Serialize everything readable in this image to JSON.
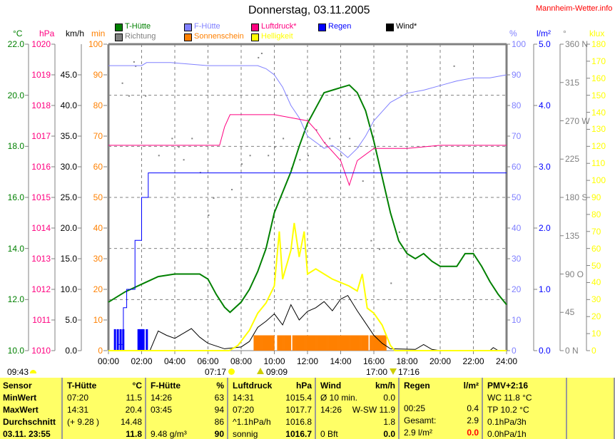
{
  "header": {
    "title": "Donnerstag, 03.11.2005",
    "site": "Mannheim-Wetter.info"
  },
  "legend": [
    {
      "label": "T-Hütte",
      "color": "#008000"
    },
    {
      "label": "F-Hütte",
      "color": "#8080ff"
    },
    {
      "label": "Luftdruck*",
      "color": "#ff0080"
    },
    {
      "label": "Regen",
      "color": "#0000ff"
    },
    {
      "label": "Wind*",
      "color": "#000000"
    },
    {
      "label": "Richtung",
      "color": "#808080"
    },
    {
      "label": "Sonnenschein",
      "color": "#ff8000"
    },
    {
      "label": "Helligkeit",
      "color": "#ffff00"
    }
  ],
  "sun": {
    "cloud_time": "09:43",
    "sunrise": "07:17",
    "first_sun": "09:09",
    "last_sun": "17:00",
    "sunset": "17:16"
  },
  "chart_data": {
    "type": "line",
    "title": "Donnerstag, 03.11.2005",
    "x_ticks": [
      "00:00",
      "02:00",
      "04:00",
      "06:00",
      "08:00",
      "10:00",
      "12:00",
      "14:00",
      "16:00",
      "18:00",
      "20:00",
      "22:00",
      "24:00"
    ],
    "xlim": [
      0,
      24
    ],
    "axes": {
      "temp": {
        "unit": "°C",
        "min": 10,
        "max": 22,
        "step": 2,
        "fmt": 1,
        "color": "#008000"
      },
      "pressure": {
        "unit": "hPa",
        "min": 1010,
        "max": 1020,
        "step": 1,
        "fmt": 0,
        "color": "#ff0080"
      },
      "wind": {
        "unit": "km/h",
        "min": 0,
        "max": 50,
        "step": 5,
        "fmt": 1,
        "color": "#000000",
        "hide_max": true
      },
      "sunshine": {
        "unit": "min",
        "min": 0,
        "max": 100,
        "step": 10,
        "fmt": 0,
        "color": "#ff8000"
      },
      "humidity": {
        "unit": "%",
        "min": 0,
        "max": 100,
        "step": 10,
        "fmt": 0,
        "color": "#8080ff"
      },
      "rain": {
        "unit": "l/m²",
        "min": 0,
        "max": 5,
        "step": 1,
        "fmt": 1,
        "color": "#0000ff"
      },
      "direction": {
        "unit": "°",
        "min": 0,
        "max": 360,
        "step": 45,
        "labels": [
          "0 N",
          "45",
          "90 O",
          "135",
          "180 S",
          "225",
          "270 W",
          "315",
          "360 N"
        ],
        "color": "#808080"
      },
      "brightness": {
        "unit": "klux",
        "min": 0,
        "max": 180,
        "step": 10,
        "fmt": 0,
        "color": "#ffff00"
      }
    },
    "series": [
      {
        "name": "T-Hütte",
        "axis": "temp",
        "color": "#008000",
        "points": [
          [
            0,
            11.9
          ],
          [
            1,
            12.3
          ],
          [
            2,
            12.6
          ],
          [
            3,
            12.9
          ],
          [
            4,
            13.0
          ],
          [
            5.5,
            13.0
          ],
          [
            6,
            12.8
          ],
          [
            6.5,
            12.2
          ],
          [
            7,
            11.7
          ],
          [
            7.33,
            11.5
          ],
          [
            8,
            11.9
          ],
          [
            8.5,
            12.4
          ],
          [
            9,
            13.1
          ],
          [
            9.5,
            14.0
          ],
          [
            10,
            15.4
          ],
          [
            10.5,
            16.2
          ],
          [
            11,
            17.0
          ],
          [
            11.5,
            18.0
          ],
          [
            12,
            18.9
          ],
          [
            12.5,
            19.5
          ],
          [
            13,
            20.1
          ],
          [
            13.5,
            20.2
          ],
          [
            14,
            20.3
          ],
          [
            14.52,
            20.4
          ],
          [
            15,
            20.1
          ],
          [
            15.5,
            19.4
          ],
          [
            16,
            18.2
          ],
          [
            16.5,
            16.8
          ],
          [
            17,
            15.4
          ],
          [
            17.5,
            14.3
          ],
          [
            18,
            13.8
          ],
          [
            18.5,
            13.6
          ],
          [
            19,
            13.8
          ],
          [
            19.5,
            13.5
          ],
          [
            20,
            13.3
          ],
          [
            21,
            13.3
          ],
          [
            21.5,
            13.8
          ],
          [
            22,
            13.8
          ],
          [
            22.5,
            13.3
          ],
          [
            23,
            12.7
          ],
          [
            23.5,
            12.2
          ],
          [
            24,
            11.8
          ]
        ]
      },
      {
        "name": "F-Hütte",
        "axis": "humidity",
        "color": "#8080ff",
        "points": [
          [
            0,
            93
          ],
          [
            2,
            93
          ],
          [
            2.3,
            94
          ],
          [
            3.75,
            94
          ],
          [
            6,
            93
          ],
          [
            8,
            93
          ],
          [
            9,
            93
          ],
          [
            9.5,
            92
          ],
          [
            10,
            90
          ],
          [
            10.5,
            86
          ],
          [
            11,
            80
          ],
          [
            11.5,
            76
          ],
          [
            12,
            70
          ],
          [
            12.5,
            68
          ],
          [
            13,
            66
          ],
          [
            13.5,
            67
          ],
          [
            14,
            65
          ],
          [
            14.43,
            63
          ],
          [
            15,
            66
          ],
          [
            15.5,
            70
          ],
          [
            16,
            75
          ],
          [
            16.5,
            78
          ],
          [
            17,
            81
          ],
          [
            18,
            84
          ],
          [
            19,
            85
          ],
          [
            20,
            86.5
          ],
          [
            21,
            88
          ],
          [
            22,
            89
          ],
          [
            23,
            89
          ],
          [
            24,
            90
          ]
        ]
      },
      {
        "name": "Luftdruck*",
        "axis": "pressure",
        "color": "#ff0080",
        "points": [
          [
            0,
            1016.7
          ],
          [
            6.7,
            1016.7
          ],
          [
            7,
            1017.3
          ],
          [
            7.33,
            1017.7
          ],
          [
            10,
            1017.7
          ],
          [
            12,
            1017.5
          ],
          [
            12.5,
            1017.2
          ],
          [
            13,
            1016.8
          ],
          [
            14,
            1016.2
          ],
          [
            14.52,
            1015.4
          ],
          [
            15,
            1016.2
          ],
          [
            16,
            1016.6
          ],
          [
            18,
            1016.6
          ],
          [
            20,
            1016.7
          ],
          [
            24,
            1016.7
          ]
        ]
      },
      {
        "name": "Regen",
        "axis": "rain",
        "color": "#0000ff",
        "step": true,
        "points": [
          [
            0,
            0
          ],
          [
            0.6,
            0.1
          ],
          [
            0.9,
            0.7
          ],
          [
            1.1,
            1.0
          ],
          [
            1.4,
            1.0
          ],
          [
            1.6,
            1.8
          ],
          [
            2.0,
            2.5
          ],
          [
            2.4,
            2.9
          ],
          [
            24,
            2.9
          ]
        ]
      },
      {
        "name": "Wind*",
        "axis": "wind",
        "color": "#000000",
        "points": [
          [
            0,
            0
          ],
          [
            2.5,
            0
          ],
          [
            3,
            3.2
          ],
          [
            3.5,
            2.5
          ],
          [
            4,
            2.0
          ],
          [
            4.5,
            2.8
          ],
          [
            5,
            3.6
          ],
          [
            5.5,
            2.2
          ],
          [
            6,
            1.2
          ],
          [
            7,
            0.3
          ],
          [
            8,
            0.6
          ],
          [
            8.5,
            1.5
          ],
          [
            9,
            3.8
          ],
          [
            9.5,
            4.8
          ],
          [
            10,
            6.0
          ],
          [
            10.5,
            4.2
          ],
          [
            11,
            7.5
          ],
          [
            11.5,
            5.0
          ],
          [
            12,
            6.4
          ],
          [
            12.5,
            7.0
          ],
          [
            13,
            8.0
          ],
          [
            13.5,
            6.5
          ],
          [
            14,
            8.4
          ],
          [
            14.43,
            9.0
          ],
          [
            15,
            6.5
          ],
          [
            15.5,
            4.5
          ],
          [
            16,
            2.5
          ],
          [
            16.5,
            1.2
          ],
          [
            17,
            0.3
          ],
          [
            18.5,
            0.2
          ],
          [
            19,
            1.0
          ],
          [
            19.5,
            0.2
          ],
          [
            20,
            0
          ],
          [
            23,
            0
          ],
          [
            23.2,
            0.5
          ],
          [
            23.5,
            0
          ]
        ]
      },
      {
        "name": "Helligkeit",
        "axis": "brightness",
        "color": "#ffff00",
        "points": [
          [
            0,
            0
          ],
          [
            7.28,
            0
          ],
          [
            7.8,
            3
          ],
          [
            8.5,
            12
          ],
          [
            9,
            22
          ],
          [
            9.5,
            28
          ],
          [
            10,
            38
          ],
          [
            10.3,
            70
          ],
          [
            10.5,
            42
          ],
          [
            11,
            59
          ],
          [
            11.2,
            75
          ],
          [
            11.5,
            55
          ],
          [
            11.8,
            70
          ],
          [
            12,
            45
          ],
          [
            12.5,
            48
          ],
          [
            13,
            45
          ],
          [
            13.5,
            42
          ],
          [
            14,
            40
          ],
          [
            14.5,
            38
          ],
          [
            15,
            35
          ],
          [
            15.3,
            45
          ],
          [
            15.6,
            25
          ],
          [
            16,
            22
          ],
          [
            16.5,
            15
          ],
          [
            17,
            3
          ],
          [
            17.27,
            0
          ],
          [
            24,
            0
          ]
        ]
      }
    ],
    "sunshine_bars": {
      "axis": "sunshine",
      "color": "#ff8000",
      "start": 8.75,
      "end": 16.67,
      "value": 5,
      "gaps": [
        [
          10.0,
          10.1
        ],
        [
          11.0,
          11.05
        ],
        [
          15.6,
          15.7
        ]
      ]
    },
    "rain_bars": {
      "axis": "rain",
      "color": "#0000ff",
      "times": [
        0.33,
        0.5,
        0.67,
        0.83,
        1.75,
        1.85,
        1.95,
        2.05,
        2.25
      ],
      "value": 0.35
    },
    "direction_points": {
      "axis": "direction",
      "color": "#808080",
      "points": [
        [
          0.8,
          315
        ],
        [
          1.2,
          300
        ],
        [
          1.5,
          340
        ],
        [
          1.6,
          335
        ],
        [
          2.2,
          300
        ],
        [
          3,
          230
        ],
        [
          3.8,
          250
        ],
        [
          4.2,
          240
        ],
        [
          4.5,
          225
        ],
        [
          5,
          250
        ],
        [
          5.5,
          210
        ],
        [
          6,
          160
        ],
        [
          6.3,
          180
        ],
        [
          7.4,
          190
        ],
        [
          8,
          220
        ],
        [
          8.5,
          230
        ],
        [
          9,
          345
        ],
        [
          9.2,
          350
        ],
        [
          9.6,
          230
        ],
        [
          10,
          240
        ],
        [
          10.5,
          250
        ],
        [
          11,
          215
        ],
        [
          11.5,
          225
        ],
        [
          12,
          230
        ],
        [
          12.5,
          260
        ],
        [
          13,
          245
        ],
        [
          13.3,
          250
        ],
        [
          14,
          230
        ],
        [
          14.5,
          250
        ],
        [
          15,
          240
        ],
        [
          15.3,
          200
        ],
        [
          15.8,
          130
        ],
        [
          16.3,
          120
        ],
        [
          17,
          80
        ],
        [
          17.5,
          140
        ],
        [
          20.8,
          335
        ]
      ]
    }
  },
  "table": [
    {
      "head": [
        "Sensor",
        ""
      ],
      "rows": [
        [
          "MinWert",
          ""
        ],
        [
          "MaxWert",
          ""
        ],
        [
          "Durchschnitt",
          ""
        ],
        [
          "03.11. 23:55",
          ""
        ]
      ],
      "boldLeft": true,
      "width": 88
    },
    {
      "head": [
        "T-Hütte",
        "°C"
      ],
      "rows": [
        [
          "07:20",
          "11.5"
        ],
        [
          "14:31",
          "20.4"
        ],
        [
          "(+ 9.28 )",
          "14.48"
        ],
        [
          "",
          "11.8"
        ]
      ],
      "width": 117
    },
    {
      "head": [
        "F-Hütte",
        "%"
      ],
      "rows": [
        [
          "14:26",
          "63"
        ],
        [
          "03:45",
          "94"
        ],
        [
          "",
          "86"
        ],
        [
          "9.48 g/m³",
          "90"
        ]
      ],
      "width": 115
    },
    {
      "head": [
        "Luftdruck",
        "hPa"
      ],
      "rows": [
        [
          "14:31",
          "1015.4"
        ],
        [
          "07:20",
          "1017.7"
        ],
        [
          "^1.1hPa/h",
          "1016.8"
        ],
        [
          "sonnig",
          "1016.7"
        ]
      ],
      "width": 123
    },
    {
      "head": [
        "Wind",
        "km/h"
      ],
      "rows": [
        [
          "Ø 10 min.",
          "0.0"
        ],
        [
          "14:26",
          "W-SW 11.9"
        ],
        [
          "",
          "1.8"
        ],
        [
          "0 Bft",
          "0.0"
        ]
      ],
      "width": 117
    },
    {
      "head": [
        "Regen",
        "l/m²"
      ],
      "rows": [
        [
          "",
          ""
        ],
        [
          "00:25",
          "0.4"
        ],
        [
          "Gesamt:",
          "2.9"
        ],
        [
          "2.9 l/m²",
          "0.0"
        ]
      ],
      "width": 117,
      "lastRed": true
    },
    {
      "head": [
        "PMV+2:16",
        ""
      ],
      "rows": [
        [
          "WC 11.8 °C",
          ""
        ],
        [
          "TP 10.2 °C",
          ""
        ],
        [
          "0.1hPa/3h",
          ""
        ],
        [
          "0.0hPa/1h",
          ""
        ]
      ],
      "width": 118,
      "plainLast": true
    },
    {
      "head": [
        "",
        ""
      ],
      "rows": [
        [
          "",
          ""
        ],
        [
          "",
          ""
        ],
        [
          "",
          ""
        ],
        [
          "",
          ""
        ]
      ],
      "width": 67
    }
  ]
}
